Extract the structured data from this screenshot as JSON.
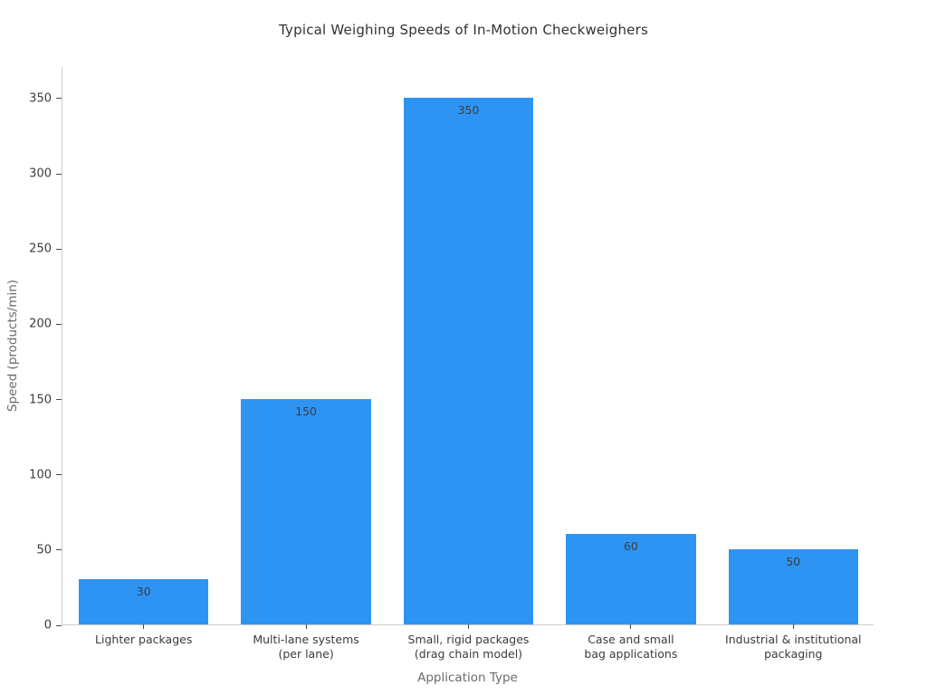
{
  "title": "Typical Weighing Speeds of In-Motion Checkweighers",
  "chart_data": {
    "type": "bar",
    "title": "Typical Weighing Speeds of In-Motion Checkweighers",
    "xlabel": "Application Type",
    "ylabel": "Speed (products/min)",
    "categories": [
      "Lighter packages",
      "Multi-lane systems\n(per lane)",
      "Small, rigid packages\n(drag chain model)",
      "Case and small\nbag applications",
      "Industrial & institutional\npackaging"
    ],
    "values": [
      30,
      150,
      350,
      60,
      50
    ],
    "bar_labels": [
      "30",
      "150",
      "350",
      "60",
      "50"
    ],
    "yticks": [
      0,
      50,
      100,
      150,
      200,
      250,
      300,
      350
    ],
    "ylim": [
      0,
      371
    ],
    "grid": false,
    "legend": null,
    "bar_width_fraction": 0.8,
    "colors": {
      "bar": "#2e94f4",
      "bar_value_label": "#3d3d3d",
      "tick_label": "#3b3b3b",
      "tick_mark": "#474747",
      "spine": "#cccccc",
      "axis_title": "#6b6b6b",
      "chart_title": "#323232",
      "background": "#ffffff"
    }
  }
}
